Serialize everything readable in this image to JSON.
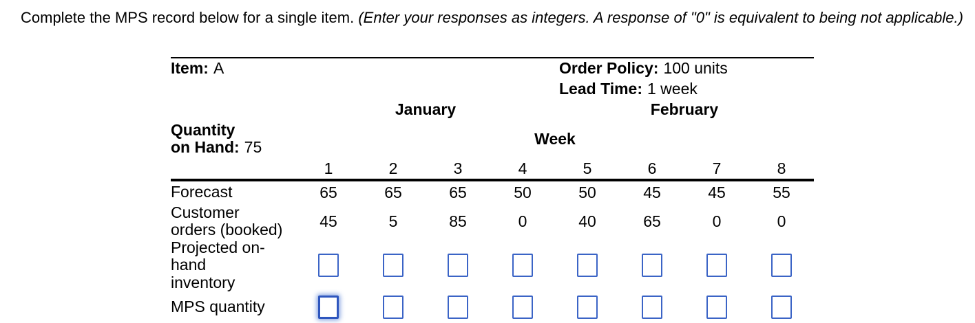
{
  "instruction": {
    "main": "Complete the MPS record below for a single item.",
    "note": " (Enter your responses as integers. A response of \"0\" is equivalent to being not applicable.)"
  },
  "record": {
    "item_label": "Item:",
    "item_value": "A",
    "order_policy_label": "Order Policy:",
    "order_policy_value": "100 units",
    "lead_time_label": "Lead Time:",
    "lead_time_value": "1 week",
    "month_first": "January",
    "month_second": "February",
    "qoh_label_line1": "Quantity",
    "qoh_label_line2": "on Hand:",
    "qoh_value": "75",
    "week_header": "Week",
    "weeks": [
      "1",
      "2",
      "3",
      "4",
      "5",
      "6",
      "7",
      "8"
    ],
    "forecast": {
      "label": "Forecast",
      "values": [
        "65",
        "65",
        "65",
        "50",
        "50",
        "45",
        "45",
        "55"
      ]
    },
    "customer_orders": {
      "label_line1": "Customer",
      "label_line2": "orders (booked)",
      "values": [
        "45",
        "5",
        "85",
        "0",
        "40",
        "65",
        "0",
        "0"
      ]
    },
    "projected_inventory": {
      "label_line1": "Projected on-hand",
      "label_line2": "inventory",
      "inputs": [
        "",
        "",
        "",
        "",
        "",
        "",
        "",
        ""
      ]
    },
    "mps_quantity": {
      "label": "MPS quantity",
      "inputs": [
        "",
        "",
        "",
        "",
        "",
        "",
        "",
        ""
      ]
    }
  },
  "colors": {
    "input_border": "#3B64C6",
    "input_focus_border": "#2E56BE",
    "input_focus_glow": "rgba(72,116,211,0.65)",
    "rule": "#000000",
    "text": "#000000"
  }
}
